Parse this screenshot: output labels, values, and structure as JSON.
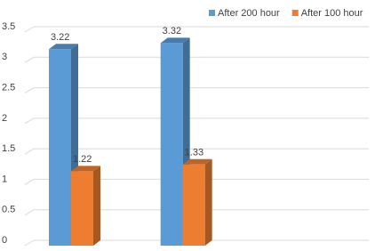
{
  "chart_data": {
    "type": "bar3d",
    "categories": [
      null,
      null,
      null
    ],
    "series": [
      {
        "name": "After 200 hour",
        "color": "#5b9bd5",
        "values": [
          3.22,
          3.32,
          null
        ]
      },
      {
        "name": "After 100 hour",
        "color": "#ed7d31",
        "values": [
          1.22,
          1.33,
          null
        ]
      }
    ],
    "ylim": [
      0,
      3.5
    ],
    "yticks": [
      0,
      0.5,
      1,
      1.5,
      2,
      2.5,
      3,
      3.5
    ],
    "grid": true,
    "legend": "top-right"
  }
}
